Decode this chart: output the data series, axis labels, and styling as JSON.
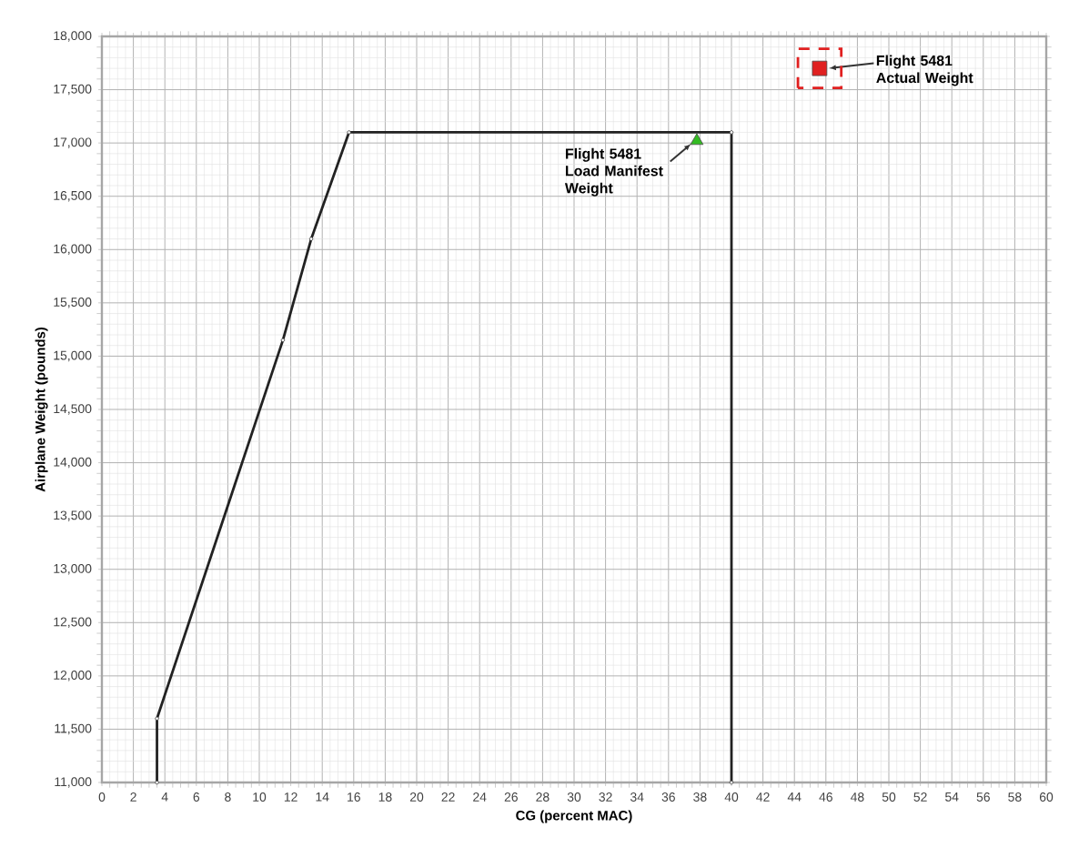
{
  "chart_data": {
    "type": "line",
    "xlabel": "CG (percent MAC)",
    "ylabel": "Airplane Weight (pounds)",
    "xlim": [
      0,
      60
    ],
    "ylim": [
      11000,
      18000
    ],
    "xticks": [
      0,
      2,
      4,
      6,
      8,
      10,
      12,
      14,
      16,
      18,
      20,
      22,
      24,
      26,
      28,
      30,
      32,
      34,
      36,
      38,
      40,
      42,
      44,
      46,
      48,
      50,
      52,
      54,
      56,
      58,
      60
    ],
    "yticks": [
      {
        "value": 11000,
        "label": "11,000"
      },
      {
        "value": 11500,
        "label": "11,500"
      },
      {
        "value": 12000,
        "label": "12,000"
      },
      {
        "value": 12500,
        "label": "12,500"
      },
      {
        "value": 13000,
        "label": "13,000"
      },
      {
        "value": 13500,
        "label": "13,500"
      },
      {
        "value": 14000,
        "label": "14,000"
      },
      {
        "value": 14500,
        "label": "14,500"
      },
      {
        "value": 15000,
        "label": "15,000"
      },
      {
        "value": 15500,
        "label": "15,500"
      },
      {
        "value": 16000,
        "label": "16,000"
      },
      {
        "value": 16500,
        "label": "16,500"
      },
      {
        "value": 17000,
        "label": "17,000"
      },
      {
        "value": 17500,
        "label": "17,500"
      },
      {
        "value": 18000,
        "label": "18,000"
      }
    ],
    "grid": true,
    "series": [
      {
        "color": "#222222",
        "marker": "circle",
        "x": [
          3.5,
          3.5,
          11.5,
          13.3,
          15.7,
          40,
          40
        ],
        "values": [
          11000,
          11600,
          15150,
          16100,
          17100,
          17100,
          11000
        ]
      },
      {
        "type": "scatter",
        "color": "#33bb22",
        "marker": "triangle",
        "x": [
          37.8
        ],
        "values": [
          17020
        ]
      },
      {
        "type": "scatter",
        "color": "#e02020",
        "marker": "square",
        "x": [
          45.6
        ],
        "values": [
          17700
        ]
      }
    ],
    "annotations": [
      {
        "text": "Flight 5481 Load Manifest Weight",
        "x": 37.8,
        "y": 17020
      },
      {
        "text": "Flight 5481 Actual Weight",
        "x": 45.6,
        "y": 17700
      }
    ]
  }
}
